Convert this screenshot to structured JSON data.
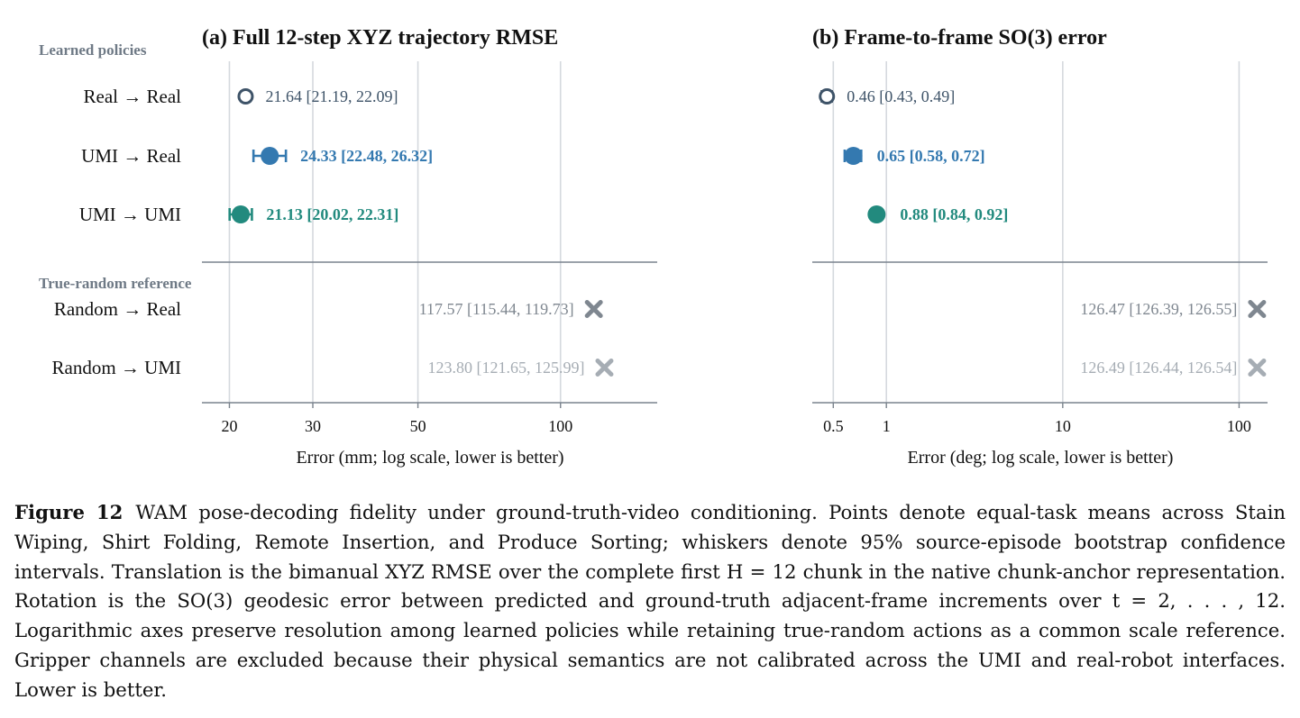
{
  "group_labels": {
    "learned": "Learned policies",
    "random": "True-random reference"
  },
  "row_labels": [
    "Real → Real",
    "UMI → Real",
    "UMI → UMI",
    "Random → Real",
    "Random → UMI"
  ],
  "colors": {
    "real_real": "#3e5368",
    "umi_real": "#3479b0",
    "umi_umi": "#228a7e",
    "random_real": "#7f8790",
    "random_umi": "#a6adb4",
    "grid": "#d5d9de",
    "axis": "#7a838d"
  },
  "chart_data": [
    {
      "type": "scatter",
      "title": "(a) Full 12-step XYZ trajectory RMSE",
      "xlabel": "Error (mm; log scale, lower is better)",
      "xscale": "log",
      "xlim": [
        17.5,
        160
      ],
      "xticks": [
        20,
        30,
        50,
        100
      ],
      "xtick_labels": [
        "20",
        "30",
        "50",
        "100"
      ],
      "grid": "vertical",
      "points": [
        {
          "label": "21.64 [21.19, 22.09]",
          "value": 21.64,
          "ci": [
            21.19,
            22.09
          ],
          "marker": "open-circle",
          "color": "#3e5368",
          "bold": false
        },
        {
          "label": "24.33 [22.48, 26.32]",
          "value": 24.33,
          "ci": [
            22.48,
            26.32
          ],
          "marker": "circle",
          "color": "#3479b0",
          "bold": true
        },
        {
          "label": "21.13 [20.02, 22.31]",
          "value": 21.13,
          "ci": [
            20.02,
            22.31
          ],
          "marker": "circle",
          "color": "#228a7e",
          "bold": true
        },
        {
          "label": "117.57 [115.44, 119.73]",
          "value": 117.57,
          "ci": [
            115.44,
            119.73
          ],
          "marker": "x",
          "color": "#7f8790",
          "bold": false
        },
        {
          "label": "123.80 [121.65, 125.99]",
          "value": 123.8,
          "ci": [
            121.65,
            125.99
          ],
          "marker": "x",
          "color": "#a6adb4",
          "bold": false
        }
      ]
    },
    {
      "type": "scatter",
      "title": "(b) Frame-to-frame SO(3) error",
      "xlabel": "Error (deg; log scale, lower is better)",
      "xscale": "log",
      "xlim": [
        0.38,
        145
      ],
      "xticks": [
        0.5,
        1,
        10,
        100
      ],
      "xtick_labels": [
        "0.5",
        "1",
        "10",
        "100"
      ],
      "grid": "vertical",
      "points": [
        {
          "label": "0.46 [0.43, 0.49]",
          "value": 0.46,
          "ci": [
            0.43,
            0.49
          ],
          "marker": "open-circle",
          "color": "#3e5368",
          "bold": false
        },
        {
          "label": "0.65 [0.58, 0.72]",
          "value": 0.65,
          "ci": [
            0.58,
            0.72
          ],
          "marker": "circle",
          "color": "#3479b0",
          "bold": true
        },
        {
          "label": "0.88 [0.84, 0.92]",
          "value": 0.88,
          "ci": [
            0.84,
            0.92
          ],
          "marker": "circle",
          "color": "#228a7e",
          "bold": true
        },
        {
          "label": "126.47 [126.39, 126.55]",
          "value": 126.47,
          "ci": [
            126.39,
            126.55
          ],
          "marker": "x",
          "color": "#7f8790",
          "bold": false
        },
        {
          "label": "126.49 [126.44, 126.54]",
          "value": 126.49,
          "ci": [
            126.44,
            126.54
          ],
          "marker": "x",
          "color": "#a6adb4",
          "bold": false
        }
      ]
    }
  ],
  "caption": {
    "label": "Figure 12",
    "text": "WAM pose-decoding fidelity under ground-truth-video conditioning. Points denote equal-task means across Stain Wiping, Shirt Folding, Remote Insertion, and Produce Sorting; whiskers denote 95% source-episode bootstrap confidence intervals. Translation is the bimanual XYZ RMSE over the complete first H = 12 chunk in the native chunk-anchor representation. Rotation is the SO(3) geodesic error between predicted and ground-truth adjacent-frame increments over t = 2, . . . , 12. Logarithmic axes preserve resolution among learned policies while retaining true-random actions as a common scale reference. Gripper channels are excluded because their physical semantics are not calibrated across the UMI and real-robot interfaces. Lower is better."
  }
}
